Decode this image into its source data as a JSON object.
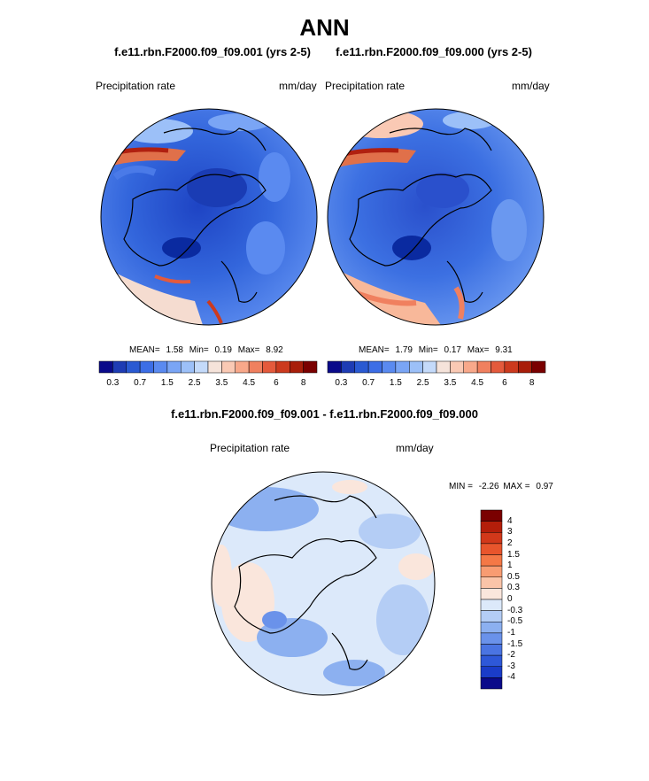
{
  "main_title": "ANN",
  "left_panel": {
    "case": "f.e11.rbn.F2000.f09_f09.001 (yrs 2-5)",
    "variable": "Precipitation rate",
    "units": "mm/day",
    "mean_label": "MEAN=",
    "mean": "1.58",
    "min_label": "Min=",
    "min": "0.19",
    "max_label": "Max=",
    "max": "8.92"
  },
  "right_panel": {
    "case": "f.e11.rbn.F2000.f09_f09.000 (yrs 2-5)",
    "variable": "Precipitation rate",
    "units": "mm/day",
    "mean_label": "MEAN=",
    "mean": "1.79",
    "min_label": "Min=",
    "min": "0.17",
    "max_label": "Max=",
    "max": "9.31"
  },
  "abs_colorbar": {
    "colors": [
      "#0a0a8a",
      "#1e3cb4",
      "#2a5ad2",
      "#3c6ee6",
      "#5a8af0",
      "#7aa5f5",
      "#9cc0f8",
      "#c4dafa",
      "#f5e3da",
      "#fac9b4",
      "#f8a88a",
      "#f0805f",
      "#e45a3c",
      "#cc3a1e",
      "#a81e0a",
      "#7a0000"
    ],
    "tick_labels": [
      "0.3",
      "0.7",
      "1.5",
      "2.5",
      "3.5",
      "4.5",
      "6",
      "8"
    ]
  },
  "diff_panel": {
    "title": "f.e11.rbn.F2000.f09_f09.001 - f.e11.rbn.F2000.f09_f09.000",
    "variable": "Precipitation rate",
    "units": "mm/day",
    "min_label": "MIN =",
    "min": "-2.26",
    "max_label": "MAX =",
    "max": "0.97"
  },
  "diff_colorbar": {
    "colors": [
      "#7a0000",
      "#b41e0a",
      "#d2381a",
      "#e8552c",
      "#f47846",
      "#f89c72",
      "#fac4a8",
      "#fae6dc",
      "#dce9fa",
      "#b4cdf5",
      "#8cb0f0",
      "#6a92ea",
      "#4a74e2",
      "#2e58d8",
      "#1a3cc8",
      "#0a0a8a"
    ],
    "tick_labels": [
      "4",
      "3",
      "2",
      "1.5",
      "1",
      "0.5",
      "0.3",
      "0",
      "-0.3",
      "-0.5",
      "-1",
      "-1.5",
      "-2",
      "-3",
      "-4"
    ]
  }
}
